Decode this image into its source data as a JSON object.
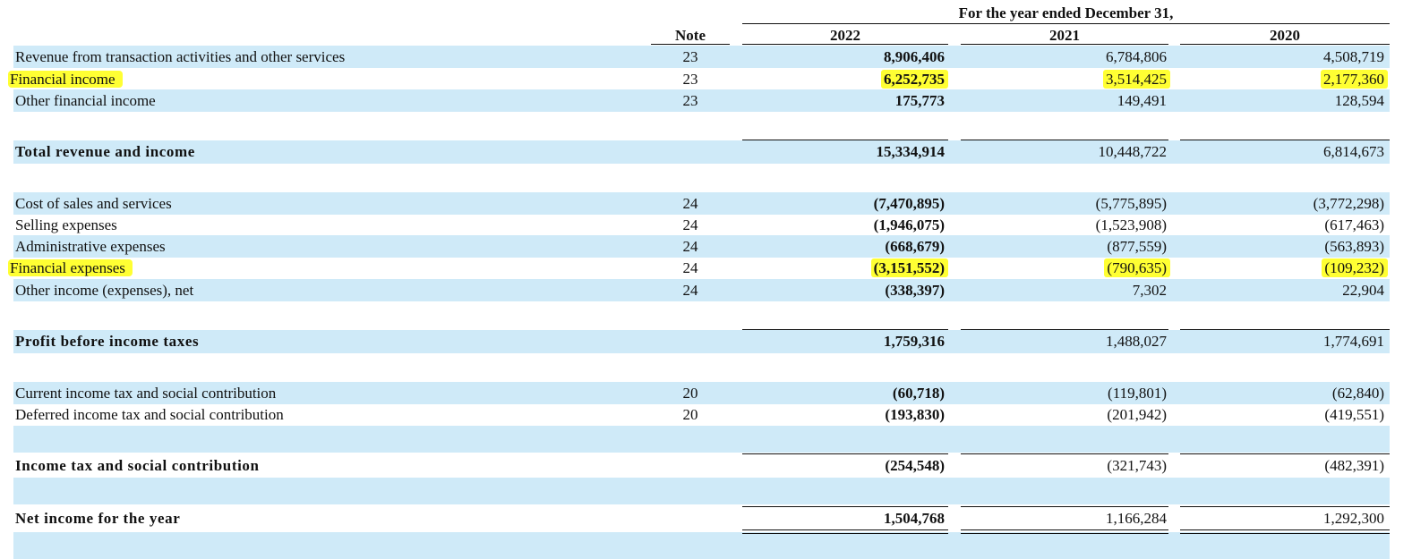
{
  "header": {
    "period_caption": "For the year ended December 31,",
    "note_label": "Note",
    "years": [
      "2022",
      "2021",
      "2020"
    ]
  },
  "rows": [
    {
      "label": "Revenue from transaction activities and other services",
      "note": "23",
      "y2022": "8,906,406",
      "y2021": "6,784,806",
      "y2020": "4,508,719",
      "highlight": false
    },
    {
      "label": "Financial income",
      "note": "23",
      "y2022": "6,252,735",
      "y2021": "3,514,425",
      "y2020": "2,177,360",
      "highlight": true
    },
    {
      "label": "Other financial income",
      "note": "23",
      "y2022": "175,773",
      "y2021": "149,491",
      "y2020": "128,594",
      "highlight": false
    },
    {
      "label": "Total revenue and income",
      "note": "",
      "y2022": "15,334,914",
      "y2021": "10,448,722",
      "y2020": "6,814,673",
      "highlight": false,
      "total": true
    },
    {
      "label": "Cost of sales and services",
      "note": "24",
      "y2022": "(7,470,895)",
      "y2021": "(5,775,895)",
      "y2020": "(3,772,298)",
      "highlight": false
    },
    {
      "label": "Selling expenses",
      "note": "24",
      "y2022": "(1,946,075)",
      "y2021": "(1,523,908)",
      "y2020": "(617,463)",
      "highlight": false
    },
    {
      "label": "Administrative expenses",
      "note": "24",
      "y2022": "(668,679)",
      "y2021": "(877,559)",
      "y2020": "(563,893)",
      "highlight": false
    },
    {
      "label": "Financial expenses",
      "note": "24",
      "y2022": "(3,151,552)",
      "y2021": "(790,635)",
      "y2020": "(109,232)",
      "highlight": true
    },
    {
      "label": "Other income (expenses), net",
      "note": "24",
      "y2022": "(338,397)",
      "y2021": "7,302",
      "y2020": "22,904",
      "highlight": false
    },
    {
      "label": "Profit before income taxes",
      "note": "",
      "y2022": "1,759,316",
      "y2021": "1,488,027",
      "y2020": "1,774,691",
      "highlight": false,
      "total": true
    },
    {
      "label": "Current income tax and social contribution",
      "note": "20",
      "y2022": "(60,718)",
      "y2021": "(119,801)",
      "y2020": "(62,840)",
      "highlight": false
    },
    {
      "label": "Deferred income tax and social contribution",
      "note": "20",
      "y2022": "(193,830)",
      "y2021": "(201,942)",
      "y2020": "(419,551)",
      "highlight": false
    },
    {
      "label": "Income tax and social contribution",
      "note": "",
      "y2022": "(254,548)",
      "y2021": "(321,743)",
      "y2020": "(482,391)",
      "highlight": false,
      "total": true
    },
    {
      "label": "Net income for the year",
      "note": "",
      "y2022": "1,504,768",
      "y2021": "1,166,284",
      "y2020": "1,292,300",
      "highlight": false,
      "total": true,
      "final": true
    }
  ],
  "colors": {
    "band": "#cfeaf8",
    "highlight": "#ffff33",
    "text": "#111111"
  }
}
